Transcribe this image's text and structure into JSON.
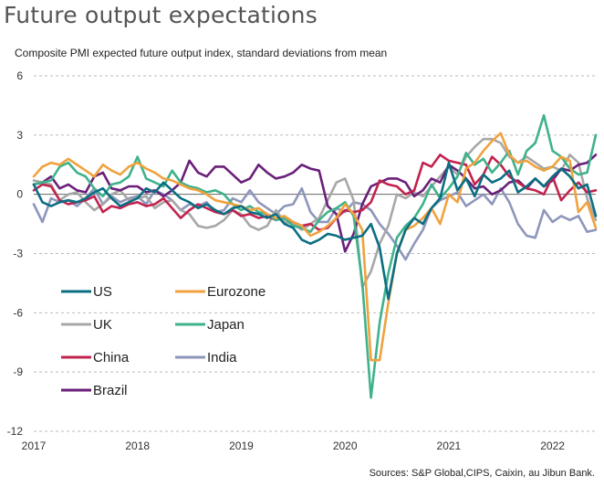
{
  "header": {
    "title": "Future output expectations",
    "subtitle": "Composite PMI expected future output index, standard deviations from mean",
    "source": "Sources: S&P Global,CIPS, Caixin, au Jibun Bank."
  },
  "chart_data": {
    "type": "line",
    "title": "Future output expectations",
    "subtitle": "Composite PMI expected future output index, standard deviations from mean",
    "xlabel": "",
    "ylabel": "",
    "ylim": [
      -12,
      6
    ],
    "yticks": [
      6,
      3,
      0,
      -3,
      -6,
      -9,
      -12
    ],
    "ytick_labels": [
      "6",
      "3",
      "0",
      "-3",
      "-6",
      "-9",
      "-12"
    ],
    "xticks": [
      "2017",
      "2018",
      "2019",
      "2020",
      "2021",
      "2022"
    ],
    "x_start": "2017-01",
    "x_end": "2022-06",
    "frequency": "monthly",
    "grid": "horizontal dashed",
    "legend_position": "lower-left inside",
    "series": [
      {
        "name": "US",
        "color": "#0b6e82",
        "values": [
          0.5,
          -0.4,
          -0.6,
          -0.4,
          -0.3,
          -0.4,
          -0.2,
          0.1,
          0.3,
          -0.2,
          -0.6,
          -0.4,
          -0.2,
          0.3,
          0.1,
          0.6,
          0.2,
          -0.2,
          -0.4,
          -0.7,
          -0.5,
          -0.8,
          -1.0,
          -0.7,
          -0.6,
          -0.9,
          -1.0,
          -1.2,
          -1.0,
          -1.5,
          -1.7,
          -2.3,
          -2.5,
          -2.3,
          -2.0,
          -2.1,
          -2.3,
          -2.2,
          -2.1,
          -1.5,
          -2.7,
          -5.3,
          -3.0,
          -1.8,
          -1.2,
          -1.5,
          -0.7,
          -0.2,
          1.6,
          0.2,
          0.8,
          -0.1,
          1.0,
          0.6,
          0.8,
          1.2,
          0.1,
          0.4,
          0.8,
          0.4,
          0.9,
          1.3,
          0.9,
          0.3,
          0.5,
          -1.1
        ]
      },
      {
        "name": "Eurozone",
        "color": "#f0a23e",
        "values": [
          0.9,
          1.4,
          1.6,
          1.5,
          1.8,
          1.5,
          1.2,
          0.9,
          1.5,
          1.2,
          1.0,
          1.4,
          1.6,
          1.3,
          1.1,
          0.8,
          0.7,
          0.5,
          0.3,
          0.2,
          0.0,
          -0.3,
          -0.4,
          -0.5,
          -0.6,
          -0.8,
          -0.7,
          -1.0,
          -1.2,
          -1.1,
          -1.4,
          -1.6,
          -2.1,
          -1.9,
          -1.6,
          -1.2,
          -0.5,
          -1.0,
          -1.8,
          -8.4,
          -8.4,
          -5.5,
          -3.0,
          -1.8,
          -1.6,
          -1.2,
          -0.7,
          -1.5,
          0.0,
          -0.4,
          1.3,
          1.6,
          2.2,
          2.7,
          3.1,
          2.0,
          1.6,
          1.7,
          1.4,
          1.2,
          1.4,
          1.9,
          1.7,
          -0.9,
          -0.4,
          -1.7
        ]
      },
      {
        "name": "UK",
        "color": "#a7a7a7",
        "values": [
          0.7,
          0.6,
          0.5,
          -0.3,
          0.0,
          0.1,
          -0.4,
          -0.8,
          -0.5,
          0.0,
          0.2,
          -0.3,
          -0.2,
          -0.1,
          -0.7,
          -0.4,
          -0.3,
          -0.8,
          -1.0,
          -1.6,
          -1.7,
          -1.6,
          -1.3,
          -0.8,
          -1.0,
          -1.6,
          -1.8,
          -1.6,
          -0.8,
          -1.4,
          -1.5,
          -1.8,
          -1.5,
          -1.2,
          -0.3,
          0.6,
          0.8,
          -0.3,
          -4.7,
          -3.9,
          -2.5,
          -1.6,
          0.0,
          -0.2,
          0.1,
          -0.1,
          0.4,
          0.9,
          1.4,
          1.0,
          1.9,
          2.4,
          2.8,
          2.8,
          2.6,
          1.9,
          1.6,
          1.9,
          1.6,
          1.3,
          1.4,
          1.2,
          2.0,
          1.6,
          -0.2,
          -1.3
        ]
      },
      {
        "name": "Japan",
        "color": "#3fb28c",
        "values": [
          0.5,
          0.6,
          0.7,
          1.4,
          1.6,
          1.1,
          0.9,
          0.3,
          -0.1,
          0.5,
          0.6,
          0.9,
          1.9,
          0.8,
          0.6,
          0.4,
          1.2,
          0.6,
          0.4,
          0.3,
          0.1,
          0.2,
          0.0,
          -0.5,
          -0.8,
          -0.6,
          -0.9,
          -1.0,
          -1.3,
          -1.2,
          -1.6,
          -1.7,
          -1.9,
          -1.3,
          -0.9,
          -0.7,
          -0.4,
          -1.1,
          -4.5,
          -10.3,
          -6.5,
          -4.0,
          -2.2,
          -1.6,
          -1.2,
          -0.5,
          0.5,
          -0.2,
          0.3,
          0.9,
          2.1,
          1.5,
          1.8,
          1.1,
          1.6,
          2.2,
          1.0,
          2.2,
          2.6,
          4.0,
          2.2,
          1.9,
          1.3,
          1.0,
          1.1,
          3.0
        ]
      },
      {
        "name": "China",
        "color": "#c2234e",
        "values": [
          0.2,
          0.5,
          0.4,
          -0.3,
          -0.5,
          -0.4,
          -0.3,
          -0.1,
          -0.9,
          -0.6,
          -0.7,
          -0.5,
          -0.4,
          -0.6,
          -0.5,
          -0.2,
          -0.7,
          -1.2,
          -0.8,
          -0.5,
          -0.7,
          -0.9,
          -1.0,
          -0.8,
          -1.1,
          -1.0,
          -1.2,
          -1.1,
          -1.3,
          -1.2,
          -1.4,
          -1.6,
          -1.5,
          -1.8,
          -1.7,
          -1.2,
          -0.8,
          -0.9,
          -0.8,
          -0.4,
          0.7,
          0.5,
          0.4,
          0.0,
          0.2,
          1.6,
          1.4,
          2.0,
          1.7,
          1.6,
          1.5,
          0.5,
          1.0,
          1.9,
          1.5,
          0.9,
          0.6,
          0.3,
          0.2,
          0.0,
          0.9,
          -0.3,
          0.2,
          0.6,
          0.1,
          0.2
        ]
      },
      {
        "name": "India",
        "color": "#8e96bb",
        "values": [
          -0.5,
          -1.4,
          -0.2,
          -0.4,
          -0.3,
          -0.6,
          -0.2,
          0.3,
          -0.5,
          -0.1,
          -0.4,
          -0.2,
          -0.1,
          -0.5,
          0.2,
          0.0,
          -0.3,
          -0.8,
          -0.5,
          -0.6,
          -0.4,
          -0.9,
          -0.8,
          -0.2,
          -0.4,
          0.2,
          -0.4,
          -0.7,
          -1.0,
          -0.6,
          -0.5,
          0.3,
          -0.9,
          -1.4,
          -1.4,
          -0.7,
          -0.9,
          -0.4,
          -0.5,
          -0.8,
          -1.5,
          -2.0,
          -2.6,
          -3.3,
          -2.5,
          -1.8,
          -0.7,
          -0.3,
          -0.1,
          0.1,
          -0.6,
          -0.3,
          0.0,
          -0.5,
          0.3,
          -0.4,
          -1.5,
          -2.1,
          -2.2,
          -0.8,
          -1.4,
          -1.1,
          -1.3,
          -1.1,
          -1.9,
          -1.8
        ]
      },
      {
        "name": "Brazil",
        "color": "#6a1f7a",
        "values": [
          0.5,
          0.6,
          0.9,
          0.3,
          0.5,
          0.2,
          0.1,
          0.9,
          1.1,
          0.3,
          0.2,
          0.4,
          0.4,
          0.1,
          0.2,
          -0.1,
          0.2,
          0.6,
          1.7,
          1.1,
          0.9,
          1.4,
          1.4,
          1.0,
          0.6,
          0.8,
          1.5,
          1.1,
          0.8,
          0.9,
          1.1,
          1.5,
          1.3,
          1.2,
          -0.6,
          -1.0,
          -2.9,
          -2.0,
          -0.5,
          0.4,
          0.6,
          0.8,
          0.8,
          0.6,
          -0.1,
          0.2,
          0.8,
          0.6,
          1.5,
          1.2,
          0.8,
          0.3,
          0.4,
          0.0,
          0.2,
          0.6,
          0.7,
          0.3,
          0.8,
          0.4,
          0.7,
          1.3,
          1.2,
          1.5,
          1.6,
          2.0
        ]
      }
    ]
  }
}
